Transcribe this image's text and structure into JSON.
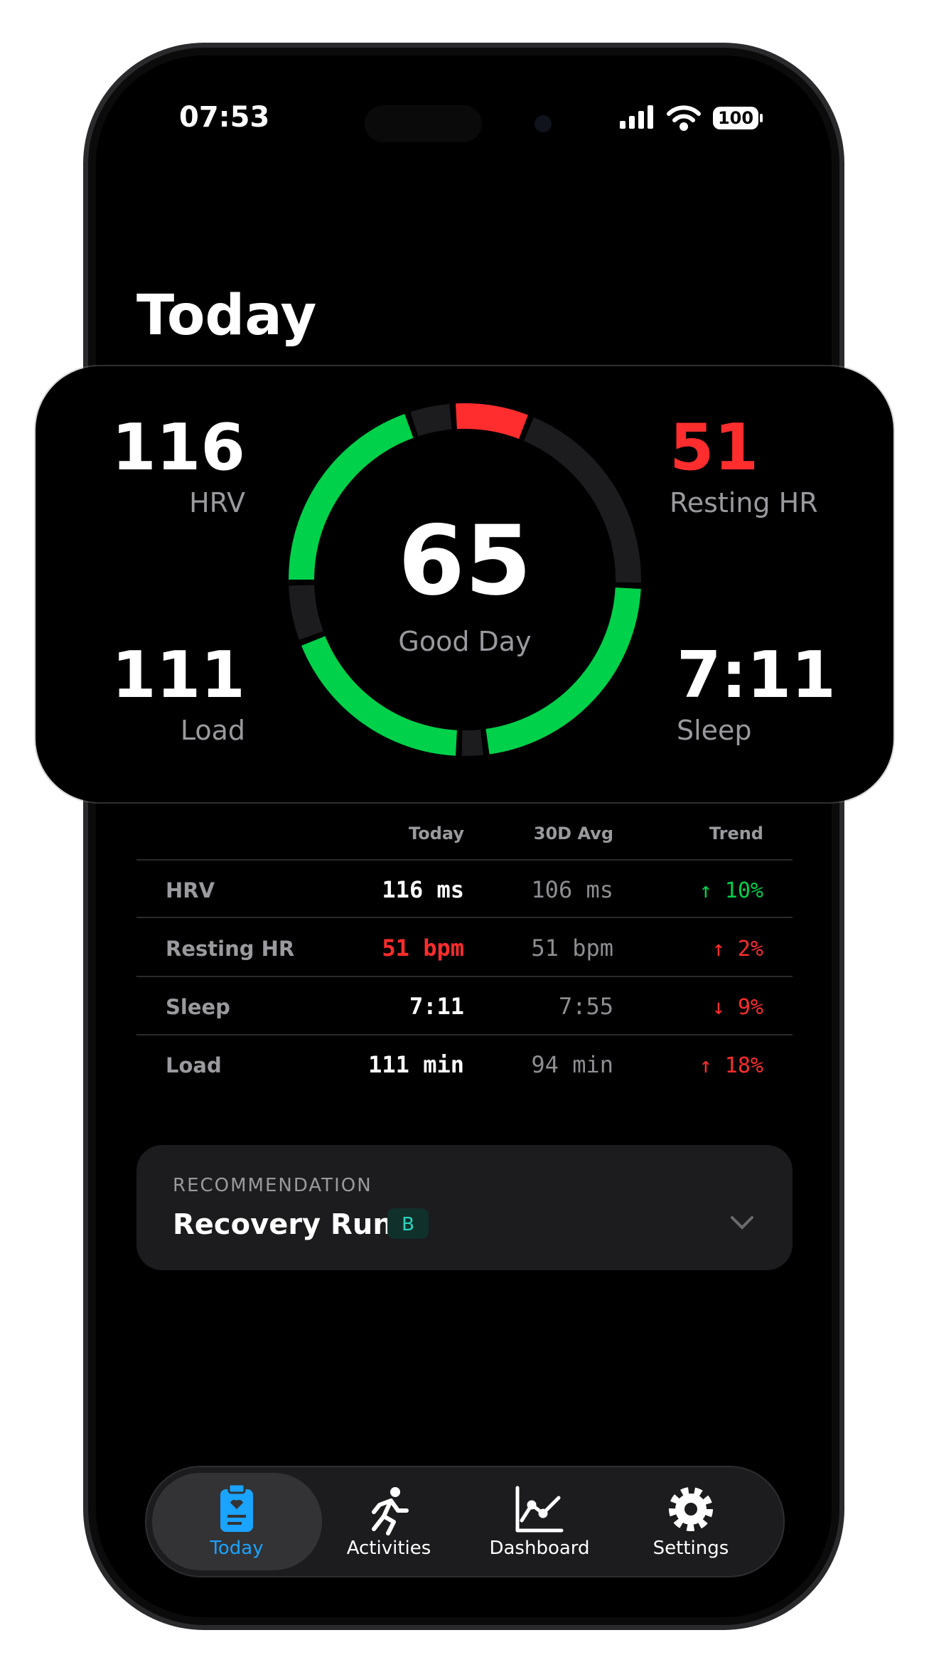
{
  "status": {
    "time": "07:53",
    "battery": "100"
  },
  "header": {
    "title": "Today"
  },
  "summary": {
    "metrics": [
      {
        "value": "116",
        "label": "HRV"
      },
      {
        "value": "51",
        "label": "Resting HR"
      },
      {
        "value": "111",
        "label": "Load"
      },
      {
        "value": "7:11",
        "label": "Sleep"
      }
    ],
    "score": "65",
    "score_label": "Good Day"
  },
  "table": {
    "columns": [
      "Today",
      "30D Avg",
      "Trend"
    ],
    "rows": [
      [
        "HRV",
        "116 ms",
        "106 ms",
        "↑ 10%"
      ],
      [
        "Resting HR",
        "51 bpm",
        "51 bpm",
        "↑ 2%"
      ],
      [
        "Sleep",
        "7:11",
        "7:55",
        "↓ 9%"
      ],
      [
        "Load",
        "111 min",
        "94 min",
        "↑ 18%"
      ]
    ]
  },
  "recommendation": {
    "label": "RECOMMENDATION",
    "title": "Recovery Run",
    "badge": "B"
  },
  "tabs": [
    "Today",
    "Activities",
    "Dashboard",
    "Settings"
  ]
}
